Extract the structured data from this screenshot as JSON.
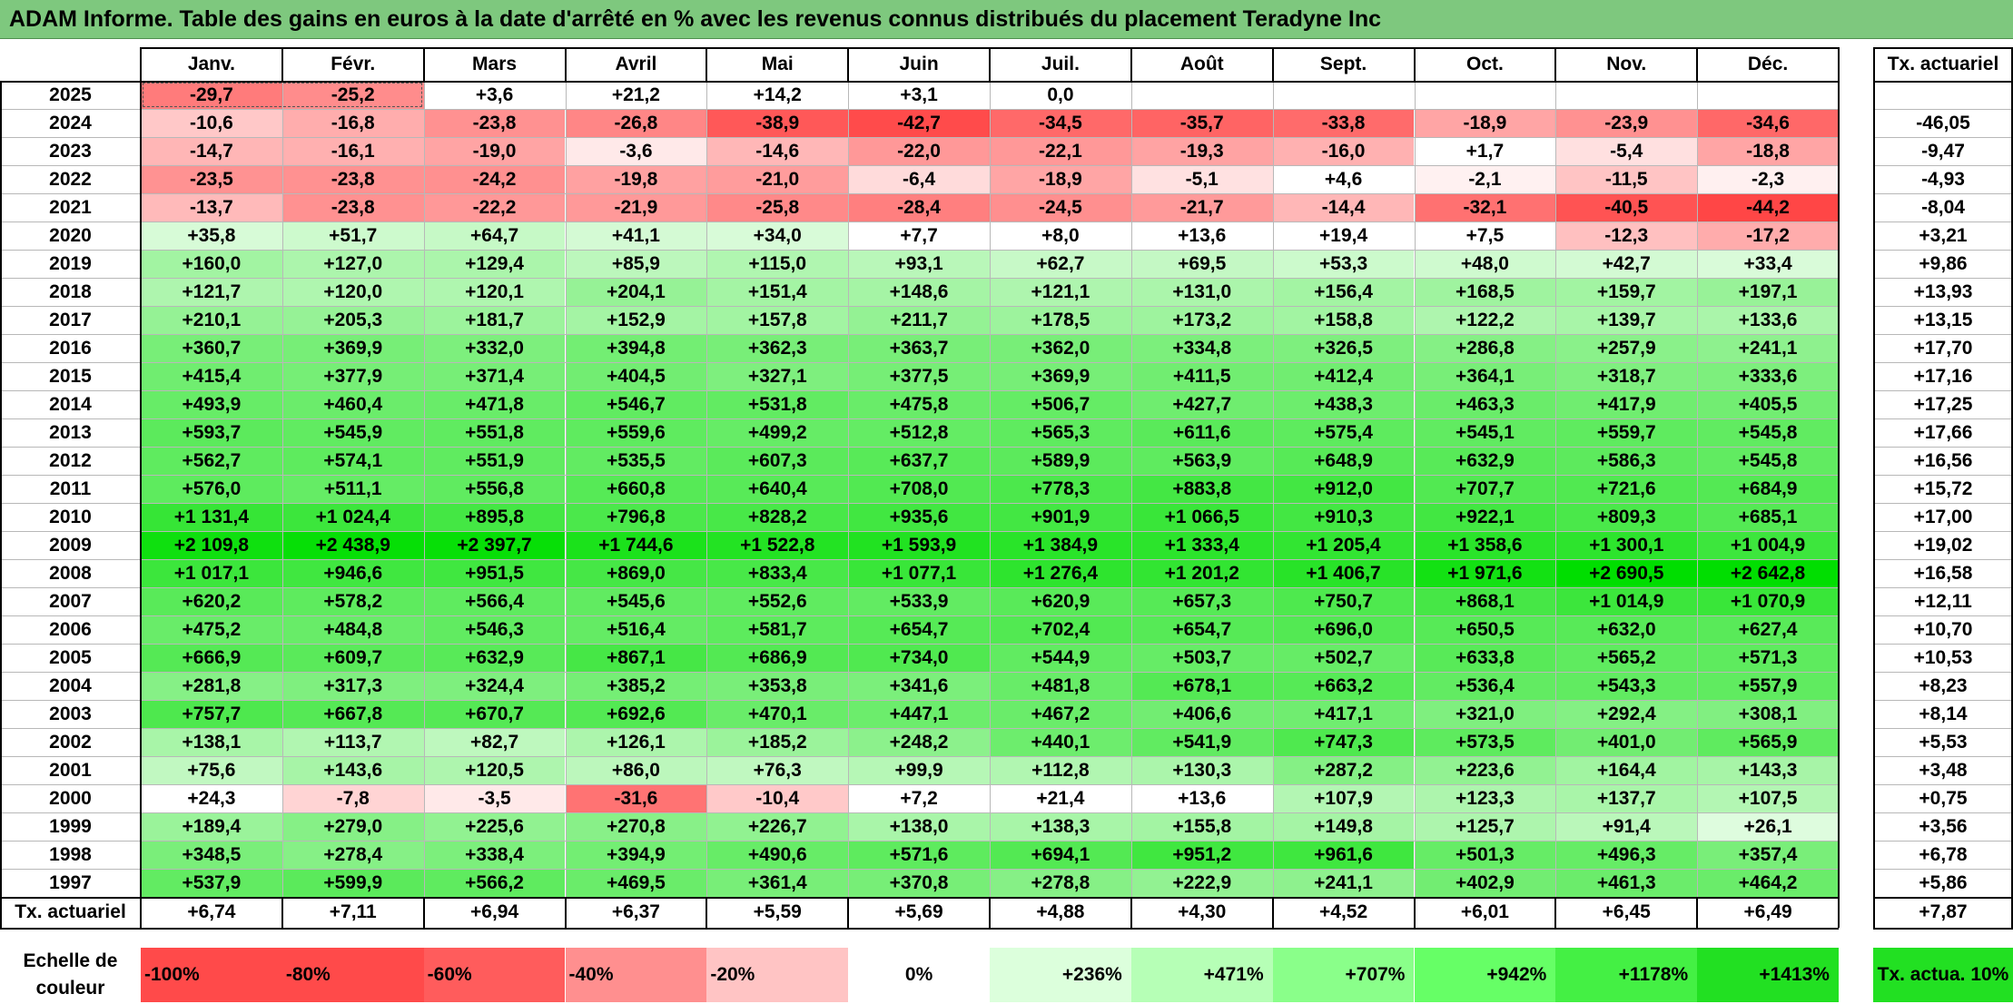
{
  "title": "ADAM Informe. Table des gains en euros à la date d'arrêté en % avec les revenus connus distribués du placement Teradyne Inc",
  "chart_data": {
    "type": "heatmap",
    "title": "ADAM Informe. Table des gains en euros à la date d'arrêté en % avec les revenus connus distribués du placement Teradyne Inc",
    "months": [
      "Janv.",
      "Févr.",
      "Mars",
      "Avril",
      "Mai",
      "Juin",
      "Juil.",
      "Août",
      "Sept.",
      "Oct.",
      "Nov.",
      "Déc."
    ],
    "rate_header": "Tx. actuariel",
    "rows": [
      {
        "year": "2025",
        "values": [
          "-29,7",
          "-25,2",
          "+3,6",
          "+21,2",
          "+14,2",
          "+3,1",
          "0,0",
          "",
          "",
          "",
          "",
          ""
        ],
        "rate": ""
      },
      {
        "year": "2024",
        "values": [
          "-10,6",
          "-16,8",
          "-23,8",
          "-26,8",
          "-38,9",
          "-42,7",
          "-34,5",
          "-35,7",
          "-33,8",
          "-18,9",
          "-23,9",
          "-34,6"
        ],
        "rate": "-46,05"
      },
      {
        "year": "2023",
        "values": [
          "-14,7",
          "-16,1",
          "-19,0",
          "-3,6",
          "-14,6",
          "-22,0",
          "-22,1",
          "-19,3",
          "-16,0",
          "+1,7",
          "-5,4",
          "-18,8"
        ],
        "rate": "-9,47"
      },
      {
        "year": "2022",
        "values": [
          "-23,5",
          "-23,8",
          "-24,2",
          "-19,8",
          "-21,0",
          "-6,4",
          "-18,9",
          "-5,1",
          "+4,6",
          "-2,1",
          "-11,5",
          "-2,3"
        ],
        "rate": "-4,93"
      },
      {
        "year": "2021",
        "values": [
          "-13,7",
          "-23,8",
          "-22,2",
          "-21,9",
          "-25,8",
          "-28,4",
          "-24,5",
          "-21,7",
          "-14,4",
          "-32,1",
          "-40,5",
          "-44,2"
        ],
        "rate": "-8,04"
      },
      {
        "year": "2020",
        "values": [
          "+35,8",
          "+51,7",
          "+64,7",
          "+41,1",
          "+34,0",
          "+7,7",
          "+8,0",
          "+13,6",
          "+19,4",
          "+7,5",
          "-12,3",
          "-17,2"
        ],
        "rate": "+3,21"
      },
      {
        "year": "2019",
        "values": [
          "+160,0",
          "+127,0",
          "+129,4",
          "+85,9",
          "+115,0",
          "+93,1",
          "+62,7",
          "+69,5",
          "+53,3",
          "+48,0",
          "+42,7",
          "+33,4"
        ],
        "rate": "+9,86"
      },
      {
        "year": "2018",
        "values": [
          "+121,7",
          "+120,0",
          "+120,1",
          "+204,1",
          "+151,4",
          "+148,6",
          "+121,1",
          "+131,0",
          "+156,4",
          "+168,5",
          "+159,7",
          "+197,1"
        ],
        "rate": "+13,93"
      },
      {
        "year": "2017",
        "values": [
          "+210,1",
          "+205,3",
          "+181,7",
          "+152,9",
          "+157,8",
          "+211,7",
          "+178,5",
          "+173,2",
          "+158,8",
          "+122,2",
          "+139,7",
          "+133,6"
        ],
        "rate": "+13,15"
      },
      {
        "year": "2016",
        "values": [
          "+360,7",
          "+369,9",
          "+332,0",
          "+394,8",
          "+362,3",
          "+363,7",
          "+362,0",
          "+334,8",
          "+326,5",
          "+286,8",
          "+257,9",
          "+241,1"
        ],
        "rate": "+17,70"
      },
      {
        "year": "2015",
        "values": [
          "+415,4",
          "+377,9",
          "+371,4",
          "+404,5",
          "+327,1",
          "+377,5",
          "+369,9",
          "+411,5",
          "+412,4",
          "+364,1",
          "+318,7",
          "+333,6"
        ],
        "rate": "+17,16"
      },
      {
        "year": "2014",
        "values": [
          "+493,9",
          "+460,4",
          "+471,8",
          "+546,7",
          "+531,8",
          "+475,8",
          "+506,7",
          "+427,7",
          "+438,3",
          "+463,3",
          "+417,9",
          "+405,5"
        ],
        "rate": "+17,25"
      },
      {
        "year": "2013",
        "values": [
          "+593,7",
          "+545,9",
          "+551,8",
          "+559,6",
          "+499,2",
          "+512,8",
          "+565,3",
          "+611,6",
          "+575,4",
          "+545,1",
          "+559,7",
          "+545,8"
        ],
        "rate": "+17,66"
      },
      {
        "year": "2012",
        "values": [
          "+562,7",
          "+574,1",
          "+551,9",
          "+535,5",
          "+607,3",
          "+637,7",
          "+589,9",
          "+563,9",
          "+648,9",
          "+632,9",
          "+586,3",
          "+545,8"
        ],
        "rate": "+16,56"
      },
      {
        "year": "2011",
        "values": [
          "+576,0",
          "+511,1",
          "+556,8",
          "+660,8",
          "+640,4",
          "+708,0",
          "+778,3",
          "+883,8",
          "+912,0",
          "+707,7",
          "+721,6",
          "+684,9"
        ],
        "rate": "+15,72"
      },
      {
        "year": "2010",
        "values": [
          "+1 131,4",
          "+1 024,4",
          "+895,8",
          "+796,8",
          "+828,2",
          "+935,6",
          "+901,9",
          "+1 066,5",
          "+910,3",
          "+922,1",
          "+809,3",
          "+685,1"
        ],
        "rate": "+17,00"
      },
      {
        "year": "2009",
        "values": [
          "+2 109,8",
          "+2 438,9",
          "+2 397,7",
          "+1 744,6",
          "+1 522,8",
          "+1 593,9",
          "+1 384,9",
          "+1 333,4",
          "+1 205,4",
          "+1 358,6",
          "+1 300,1",
          "+1 004,9"
        ],
        "rate": "+19,02"
      },
      {
        "year": "2008",
        "values": [
          "+1 017,1",
          "+946,6",
          "+951,5",
          "+869,0",
          "+833,4",
          "+1 077,1",
          "+1 276,4",
          "+1 201,2",
          "+1 406,7",
          "+1 971,6",
          "+2 690,5",
          "+2 642,8"
        ],
        "rate": "+16,58"
      },
      {
        "year": "2007",
        "values": [
          "+620,2",
          "+578,2",
          "+566,4",
          "+545,6",
          "+552,6",
          "+533,9",
          "+620,9",
          "+657,3",
          "+750,7",
          "+868,1",
          "+1 014,9",
          "+1 070,9"
        ],
        "rate": "+12,11"
      },
      {
        "year": "2006",
        "values": [
          "+475,2",
          "+484,8",
          "+546,3",
          "+516,4",
          "+581,7",
          "+654,7",
          "+702,4",
          "+654,7",
          "+696,0",
          "+650,5",
          "+632,0",
          "+627,4"
        ],
        "rate": "+10,70"
      },
      {
        "year": "2005",
        "values": [
          "+666,9",
          "+609,7",
          "+632,9",
          "+867,1",
          "+686,9",
          "+734,0",
          "+544,9",
          "+503,7",
          "+502,7",
          "+633,8",
          "+565,2",
          "+571,3"
        ],
        "rate": "+10,53"
      },
      {
        "year": "2004",
        "values": [
          "+281,8",
          "+317,3",
          "+324,4",
          "+385,2",
          "+353,8",
          "+341,6",
          "+481,8",
          "+678,1",
          "+663,2",
          "+536,4",
          "+543,3",
          "+557,9"
        ],
        "rate": "+8,23"
      },
      {
        "year": "2003",
        "values": [
          "+757,7",
          "+667,8",
          "+670,7",
          "+692,6",
          "+470,1",
          "+447,1",
          "+467,2",
          "+406,6",
          "+417,1",
          "+321,0",
          "+292,4",
          "+308,1"
        ],
        "rate": "+8,14"
      },
      {
        "year": "2002",
        "values": [
          "+138,1",
          "+113,7",
          "+82,7",
          "+126,1",
          "+185,2",
          "+248,2",
          "+440,1",
          "+541,9",
          "+747,3",
          "+573,5",
          "+401,0",
          "+565,9"
        ],
        "rate": "+5,53"
      },
      {
        "year": "2001",
        "values": [
          "+75,6",
          "+143,6",
          "+120,5",
          "+86,0",
          "+76,3",
          "+99,9",
          "+112,8",
          "+130,3",
          "+287,2",
          "+223,6",
          "+164,4",
          "+143,3"
        ],
        "rate": "+3,48"
      },
      {
        "year": "2000",
        "values": [
          "+24,3",
          "-7,8",
          "-3,5",
          "-31,6",
          "-10,4",
          "+7,2",
          "+21,4",
          "+13,6",
          "+107,9",
          "+123,3",
          "+137,7",
          "+107,5"
        ],
        "rate": "+0,75"
      },
      {
        "year": "1999",
        "values": [
          "+189,4",
          "+279,0",
          "+225,6",
          "+270,8",
          "+226,7",
          "+138,0",
          "+138,3",
          "+155,8",
          "+149,8",
          "+125,7",
          "+91,4",
          "+26,1"
        ],
        "rate": "+3,56"
      },
      {
        "year": "1998",
        "values": [
          "+348,5",
          "+278,4",
          "+338,4",
          "+394,9",
          "+490,6",
          "+571,6",
          "+694,1",
          "+951,2",
          "+961,6",
          "+501,3",
          "+496,3",
          "+357,4"
        ],
        "rate": "+6,78"
      },
      {
        "year": "1997",
        "values": [
          "+537,9",
          "+599,9",
          "+566,2",
          "+469,5",
          "+361,4",
          "+370,8",
          "+278,8",
          "+222,9",
          "+241,1",
          "+402,9",
          "+461,3",
          "+464,2"
        ],
        "rate": "+5,86"
      }
    ],
    "footer": {
      "label": "Tx. actuariel",
      "values": [
        "+6,74",
        "+7,11",
        "+6,94",
        "+6,37",
        "+5,59",
        "+5,69",
        "+4,88",
        "+4,30",
        "+4,52",
        "+6,01",
        "+6,45",
        "+6,49"
      ],
      "rate": "+7,87"
    },
    "color_scale": {
      "label": "Echelle de couleur",
      "steps": [
        "-100%",
        "-80%",
        "-60%",
        "-40%",
        "-20%",
        "0%",
        "+236%",
        "+471%",
        "+707%",
        "+942%",
        "+1178%",
        "+1413%"
      ],
      "colors": [
        "#ff4a4a",
        "#ff4a4a",
        "#ff5c5c",
        "#ff8f8f",
        "#ffc4c4",
        "#ffffff",
        "#dcffdc",
        "#b6ffb6",
        "#8aff8a",
        "#66ff66",
        "#44f044",
        "#22e022"
      ],
      "rate_label": "Tx. actua. 10%",
      "rate_color": "#22e022"
    }
  }
}
